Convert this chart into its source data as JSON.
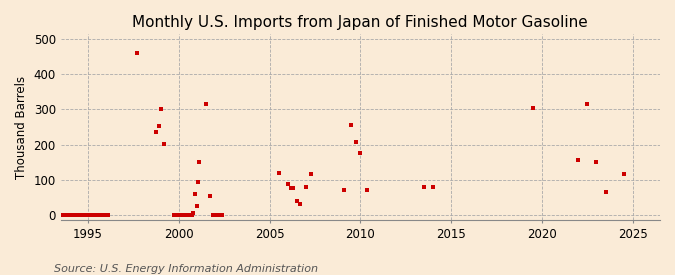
{
  "title": "Monthly U.S. Imports from Japan of Finished Motor Gasoline",
  "ylabel": "Thousand Barrels",
  "source": "Source: U.S. Energy Information Administration",
  "background_color": "#faebd7",
  "marker_color": "#cc0000",
  "xlim": [
    1993.5,
    2026.5
  ],
  "ylim": [
    -15,
    515
  ],
  "yticks": [
    0,
    100,
    200,
    300,
    400,
    500
  ],
  "xticks": [
    1995,
    2000,
    2005,
    2010,
    2015,
    2020,
    2025
  ],
  "data_x": [
    1993.6,
    1993.7,
    1993.8,
    1993.9,
    1994.0,
    1994.1,
    1994.2,
    1994.3,
    1994.4,
    1994.5,
    1994.6,
    1994.7,
    1994.8,
    1994.9,
    1995.0,
    1995.1,
    1995.2,
    1995.3,
    1995.4,
    1995.5,
    1995.6,
    1995.7,
    1995.8,
    1995.9,
    1996.0,
    1996.1,
    1997.7,
    1998.75,
    1998.9,
    1999.0,
    1999.2,
    1999.75,
    1999.85,
    1999.9,
    1999.95,
    2000.0,
    2000.05,
    2000.1,
    2000.15,
    2000.2,
    2000.25,
    2000.3,
    2000.35,
    2000.4,
    2000.45,
    2000.5,
    2000.55,
    2000.6,
    2000.65,
    2000.7,
    2000.75,
    2000.8,
    2000.9,
    2001.0,
    2001.05,
    2001.1,
    2001.5,
    2001.7,
    2001.9,
    2002.0,
    2002.1,
    2002.2,
    2002.3,
    2002.4,
    2005.5,
    2006.0,
    2006.2,
    2006.3,
    2006.5,
    2006.7,
    2007.0,
    2007.3,
    2009.1,
    2009.5,
    2009.75,
    2010.0,
    2010.35,
    2013.5,
    2014.0,
    2019.5,
    2022.0,
    2022.5,
    2023.0,
    2023.5,
    2024.5
  ],
  "data_y": [
    0,
    0,
    0,
    0,
    0,
    0,
    0,
    0,
    0,
    0,
    0,
    0,
    0,
    0,
    0,
    0,
    0,
    0,
    0,
    0,
    0,
    0,
    0,
    0,
    0,
    0,
    460,
    235,
    252,
    302,
    202,
    0,
    0,
    0,
    0,
    0,
    0,
    0,
    0,
    0,
    0,
    0,
    0,
    0,
    0,
    0,
    0,
    0,
    0,
    0,
    0,
    5,
    60,
    25,
    93,
    150,
    315,
    55,
    0,
    0,
    0,
    0,
    0,
    0,
    118,
    88,
    75,
    75,
    40,
    30,
    80,
    115,
    70,
    255,
    207,
    175,
    70,
    80,
    80,
    305,
    155,
    315,
    150,
    65,
    115
  ],
  "title_fontsize": 11,
  "label_fontsize": 8.5,
  "tick_fontsize": 8.5,
  "source_fontsize": 8
}
